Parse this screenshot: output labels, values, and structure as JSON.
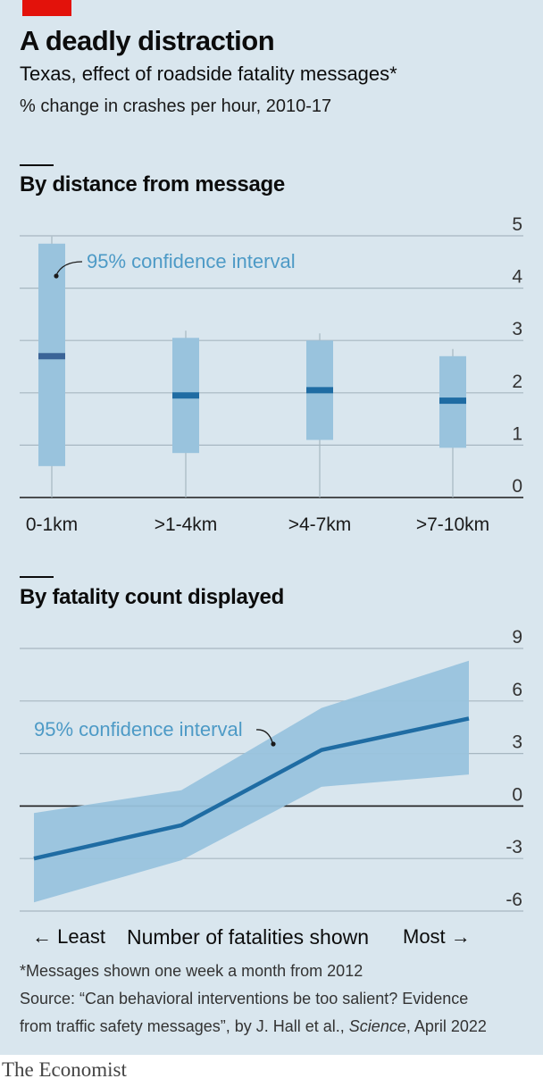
{
  "brand": {
    "accent": "#e3120b",
    "name": "The Economist"
  },
  "header": {
    "title": "A deadly distraction",
    "subtitle": "Texas, effect of roadside fatality messages*",
    "unit": "% change in crashes per hour, 2010-17"
  },
  "chart_data": [
    {
      "type": "range-bar",
      "title": "By distance from message",
      "categories": [
        "0-1km",
        ">1-4km",
        ">4-7km",
        ">7-10km"
      ],
      "values": [
        2.7,
        1.95,
        2.05,
        1.85
      ],
      "ci_low": [
        0.6,
        0.85,
        1.1,
        0.95
      ],
      "ci_high": [
        4.85,
        3.05,
        3.0,
        2.7
      ],
      "ylim": [
        0,
        5
      ],
      "yticks": [
        0,
        1,
        2,
        3,
        4,
        5
      ],
      "annotation": "95% confidence interval",
      "colors": {
        "ci": "#99c3dd",
        "estimate": "#1f6ca3",
        "first_estimate": "#3b6497",
        "annotation": "#4d9ac6"
      },
      "grid": true
    },
    {
      "type": "line",
      "title": "By fatality count displayed",
      "x": [
        1,
        2,
        3,
        4
      ],
      "values": [
        -3.0,
        -1.1,
        3.2,
        5.0
      ],
      "ci_low": [
        -5.5,
        -3.1,
        1.1,
        1.8
      ],
      "ci_high": [
        -0.4,
        0.9,
        5.6,
        8.3
      ],
      "ylim": [
        -6,
        9
      ],
      "yticks": [
        9,
        6,
        3,
        0,
        -3,
        -6
      ],
      "annotation": "95% confidence interval",
      "xlabel": "Number of fatalities shown",
      "xlabel_left": "← Least",
      "xlabel_right": "Most →",
      "colors": {
        "ci": "#99c3dd",
        "line": "#1f6ca3",
        "annotation": "#4d9ac6"
      },
      "grid": true
    }
  ],
  "footer": {
    "footnote": "*Messages shown one week a month from 2012",
    "source_line1": "Source: “Can behavioral interventions be too salient? Evidence",
    "source_line2": "from traffic safety messages”, by J. Hall et al., Science, April 2022"
  }
}
